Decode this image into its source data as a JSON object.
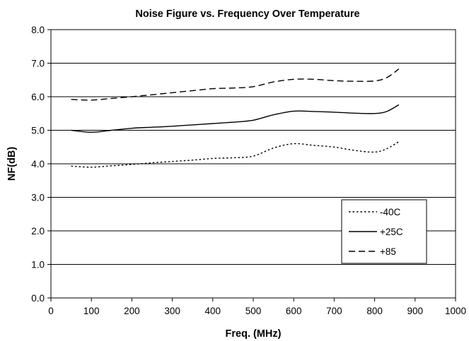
{
  "chart_data": {
    "type": "line",
    "title": "Noise Figure vs. Frequency Over Temperature",
    "xlabel": "Freq. (MHz)",
    "ylabel": "NF(dB)",
    "xlim": [
      0,
      1000
    ],
    "ylim": [
      0,
      8
    ],
    "xticks": [
      "0",
      "100",
      "200",
      "300",
      "400",
      "500",
      "600",
      "700",
      "800",
      "900",
      "1000"
    ],
    "yticks": [
      "0.0",
      "1.0",
      "2.0",
      "3.0",
      "4.0",
      "5.0",
      "6.0",
      "7.0",
      "8.0"
    ],
    "grid": "horizontal",
    "legend_position": "lower-right",
    "series": [
      {
        "name": "-40C",
        "dash": "dotted",
        "x": [
          50,
          100,
          150,
          200,
          250,
          300,
          350,
          400,
          450,
          500,
          550,
          600,
          650,
          700,
          750,
          800,
          830,
          860
        ],
        "y": [
          3.93,
          3.9,
          3.94,
          3.98,
          4.03,
          4.07,
          4.11,
          4.16,
          4.18,
          4.23,
          4.47,
          4.6,
          4.55,
          4.5,
          4.4,
          4.35,
          4.45,
          4.66
        ]
      },
      {
        "name": "+25C",
        "dash": "solid",
        "x": [
          50,
          100,
          150,
          200,
          250,
          300,
          350,
          400,
          450,
          500,
          550,
          600,
          650,
          700,
          750,
          800,
          830,
          860
        ],
        "y": [
          5.0,
          4.94,
          5.0,
          5.06,
          5.09,
          5.12,
          5.16,
          5.2,
          5.24,
          5.3,
          5.46,
          5.57,
          5.56,
          5.54,
          5.51,
          5.5,
          5.56,
          5.76
        ]
      },
      {
        "name": "+85",
        "dash": "dashed",
        "x": [
          50,
          100,
          150,
          200,
          250,
          300,
          350,
          400,
          450,
          500,
          550,
          600,
          650,
          700,
          750,
          800,
          830,
          860
        ],
        "y": [
          5.92,
          5.9,
          5.95,
          6.0,
          6.06,
          6.12,
          6.18,
          6.24,
          6.26,
          6.3,
          6.44,
          6.52,
          6.52,
          6.48,
          6.46,
          6.47,
          6.57,
          6.83
        ]
      }
    ]
  }
}
